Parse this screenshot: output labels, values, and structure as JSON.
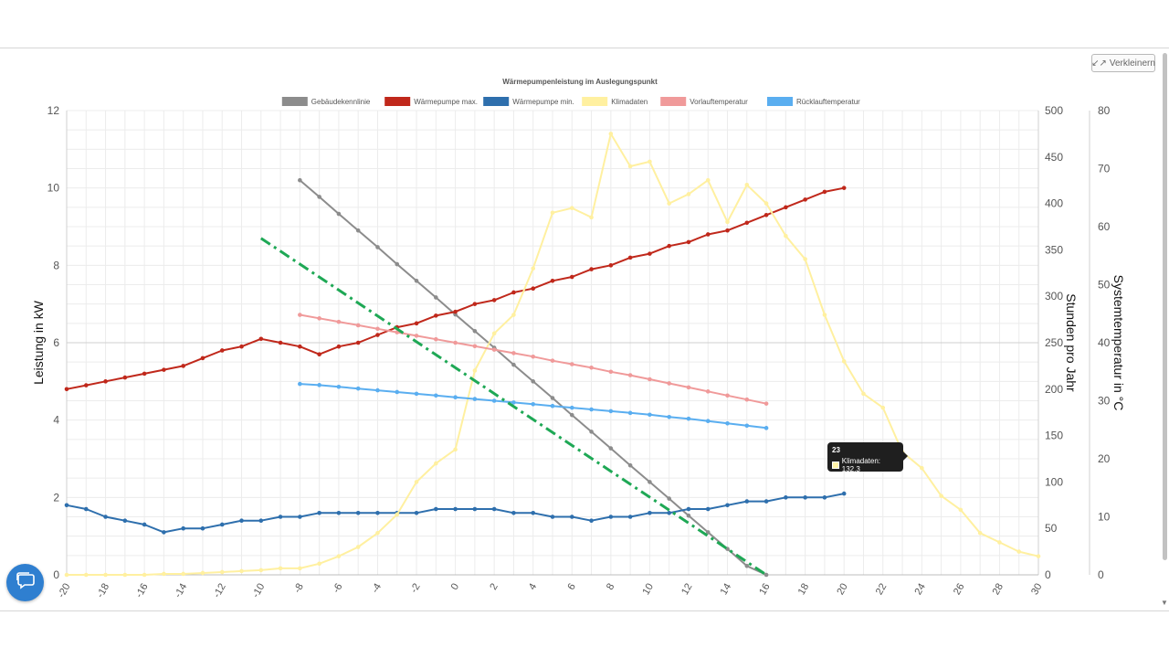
{
  "toolbar": {
    "shrink_label": "Verkleinern"
  },
  "tooltip": {
    "title": "23",
    "label": "Klimadaten: 132,3",
    "color": "#fff3a8"
  },
  "chart_data": {
    "type": "line",
    "title": "Wärmepumpenleistung im Auslegungspunkt",
    "xlabel": "",
    "ylabel": "Leistung in kW",
    "y2label": "Stunden pro Jahr",
    "y3label": "Systemtemperatur in °C",
    "xlim": [
      -20,
      30
    ],
    "ylim": [
      0,
      12
    ],
    "y2lim": [
      0,
      500
    ],
    "y3lim": [
      0,
      80
    ],
    "x_ticks": [
      -20,
      -18,
      -16,
      -14,
      -12,
      -10,
      -8,
      -6,
      -4,
      -2,
      0,
      2,
      4,
      6,
      8,
      10,
      12,
      14,
      16,
      18,
      20,
      22,
      24,
      26,
      28,
      30
    ],
    "y_ticks": [
      0,
      2,
      4,
      6,
      8,
      10,
      12
    ],
    "y2_ticks": [
      0,
      50,
      100,
      150,
      200,
      250,
      300,
      350,
      400,
      450,
      500
    ],
    "y3_ticks": [
      0,
      10,
      20,
      30,
      40,
      50,
      60,
      70,
      80
    ],
    "grid": true,
    "legend_position": "top",
    "series": [
      {
        "name": "Gebäudekennlinie",
        "color": "#8c8c8c",
        "axis": "y",
        "x": [
          -8,
          -7,
          -6,
          -5,
          -4,
          -3,
          -2,
          -1,
          0,
          1,
          2,
          3,
          4,
          5,
          6,
          7,
          8,
          9,
          10,
          11,
          12,
          13,
          14,
          15,
          16
        ],
        "values": [
          10.2,
          9.77,
          9.33,
          8.9,
          8.47,
          8.03,
          7.6,
          7.17,
          6.73,
          6.3,
          5.87,
          5.43,
          5.0,
          4.57,
          4.13,
          3.7,
          3.27,
          2.83,
          2.4,
          1.97,
          1.53,
          1.1,
          0.67,
          0.23,
          0.0
        ]
      },
      {
        "name": "Wärmepumpe max.",
        "color": "#c0281b",
        "axis": "y",
        "x": [
          -20,
          -19,
          -18,
          -17,
          -16,
          -15,
          -14,
          -13,
          -12,
          -11,
          -10,
          -9,
          -8,
          -7,
          -6,
          -5,
          -4,
          -3,
          -2,
          -1,
          0,
          1,
          2,
          3,
          4,
          5,
          6,
          7,
          8,
          9,
          10,
          11,
          12,
          13,
          14,
          15,
          16,
          17,
          18,
          19,
          20
        ],
        "values": [
          4.8,
          4.9,
          5.0,
          5.1,
          5.2,
          5.3,
          5.4,
          5.6,
          5.8,
          5.9,
          6.1,
          6.0,
          5.9,
          5.7,
          5.9,
          6.0,
          6.2,
          6.4,
          6.5,
          6.7,
          6.8,
          7.0,
          7.1,
          7.3,
          7.4,
          7.6,
          7.7,
          7.9,
          8.0,
          8.2,
          8.3,
          8.5,
          8.6,
          8.8,
          8.9,
          9.1,
          9.3,
          9.5,
          9.7,
          9.9,
          10.0
        ]
      },
      {
        "name": "Wärmepumpe min.",
        "color": "#2e6fad",
        "axis": "y",
        "x": [
          -20,
          -19,
          -18,
          -17,
          -16,
          -15,
          -14,
          -13,
          -12,
          -11,
          -10,
          -9,
          -8,
          -7,
          -6,
          -5,
          -4,
          -3,
          -2,
          -1,
          0,
          1,
          2,
          3,
          4,
          5,
          6,
          7,
          8,
          9,
          10,
          11,
          12,
          13,
          14,
          15,
          16,
          17,
          18,
          19,
          20
        ],
        "values": [
          1.8,
          1.7,
          1.5,
          1.4,
          1.3,
          1.1,
          1.2,
          1.2,
          1.3,
          1.4,
          1.4,
          1.5,
          1.5,
          1.6,
          1.6,
          1.6,
          1.6,
          1.6,
          1.6,
          1.7,
          1.7,
          1.7,
          1.7,
          1.6,
          1.6,
          1.5,
          1.5,
          1.4,
          1.5,
          1.5,
          1.6,
          1.6,
          1.7,
          1.7,
          1.8,
          1.9,
          1.9,
          2.0,
          2.0,
          2.0,
          2.1
        ]
      },
      {
        "name": "Klimadaten",
        "color": "#fff0a0",
        "axis": "y2",
        "x": [
          -20,
          -19,
          -18,
          -17,
          -16,
          -15,
          -14,
          -13,
          -12,
          -11,
          -10,
          -9,
          -8,
          -7,
          -6,
          -5,
          -4,
          -3,
          -2,
          -1,
          0,
          1,
          2,
          3,
          4,
          5,
          6,
          7,
          8,
          9,
          10,
          11,
          12,
          13,
          14,
          15,
          16,
          17,
          18,
          19,
          20,
          21,
          22,
          23,
          24,
          25,
          26,
          27,
          28,
          29,
          30
        ],
        "values": [
          0,
          0,
          0,
          0,
          0,
          1,
          1,
          2,
          3,
          4,
          5,
          7,
          7,
          12,
          20,
          30,
          45,
          65,
          100,
          120,
          135,
          220,
          260,
          280,
          330,
          390,
          395,
          385,
          475,
          440,
          445,
          400,
          410,
          425,
          380,
          420,
          400,
          365,
          340,
          280,
          230,
          195,
          180,
          132.3,
          115,
          85,
          70,
          45,
          35,
          25,
          20
        ]
      },
      {
        "name": "Vorlauftemperatur",
        "color": "#f09a9a",
        "axis": "y3",
        "x": [
          -8,
          -7,
          -6,
          -5,
          -4,
          -3,
          -2,
          -1,
          0,
          1,
          2,
          3,
          4,
          5,
          6,
          7,
          8,
          9,
          10,
          11,
          12,
          13,
          14,
          15,
          16
        ],
        "values": [
          44.8,
          44.2,
          43.6,
          43.0,
          42.4,
          41.8,
          41.2,
          40.6,
          40.0,
          39.4,
          38.8,
          38.2,
          37.6,
          36.9,
          36.3,
          35.7,
          35.0,
          34.4,
          33.7,
          33.0,
          32.3,
          31.6,
          30.9,
          30.2,
          29.5
        ]
      },
      {
        "name": "Rücklauftemperatur",
        "color": "#5aaef0",
        "axis": "y3",
        "x": [
          -8,
          -7,
          -6,
          -5,
          -4,
          -3,
          -2,
          -1,
          0,
          1,
          2,
          3,
          4,
          5,
          6,
          7,
          8,
          9,
          10,
          11,
          12,
          13,
          14,
          15,
          16
        ],
        "values": [
          32.9,
          32.7,
          32.4,
          32.1,
          31.8,
          31.5,
          31.2,
          30.9,
          30.6,
          30.3,
          30.0,
          29.7,
          29.4,
          29.1,
          28.8,
          28.5,
          28.2,
          27.9,
          27.6,
          27.2,
          26.9,
          26.5,
          26.1,
          25.7,
          25.3
        ]
      },
      {
        "name": "",
        "color": "#1ea855",
        "axis": "y",
        "style": "dash-dot",
        "legend": false,
        "x": [
          -10,
          16
        ],
        "values": [
          8.7,
          0
        ]
      }
    ]
  }
}
